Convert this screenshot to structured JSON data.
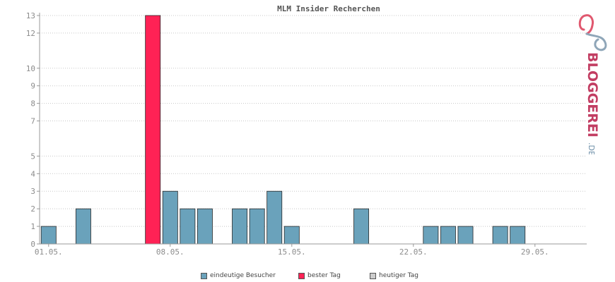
{
  "chart_data": {
    "type": "bar",
    "title": "MLM Insider Recherchen",
    "y_ticks": [
      0,
      1,
      2,
      3,
      4,
      5,
      7,
      8,
      9,
      10,
      12,
      13
    ],
    "x_ticks": [
      {
        "day": 1,
        "label": "01.05."
      },
      {
        "day": 8,
        "label": "08.05."
      },
      {
        "day": 15,
        "label": "15.05."
      },
      {
        "day": 22,
        "label": "22.05."
      },
      {
        "day": 29,
        "label": "29.05."
      }
    ],
    "days": [
      1,
      2,
      3,
      4,
      5,
      6,
      7,
      8,
      9,
      10,
      11,
      12,
      13,
      14,
      15,
      16,
      17,
      18,
      19,
      20,
      21,
      22,
      23,
      24,
      25,
      26,
      27,
      28,
      29,
      30,
      31
    ],
    "values": [
      1,
      0,
      2,
      0,
      0,
      0,
      13,
      3,
      2,
      2,
      0,
      2,
      2,
      3,
      1,
      0,
      0,
      0,
      2,
      0,
      0,
      0,
      1,
      1,
      1,
      0,
      1,
      1,
      0,
      0,
      0
    ],
    "best_day": 7,
    "grid": true,
    "legend_position": "bottom"
  },
  "legend": [
    {
      "label": "eindeutige Besucher",
      "color": "#6aa2bb"
    },
    {
      "label": "bester Tag",
      "color": "#ff2255"
    },
    {
      "label": "heutiger Tag",
      "color": "#cccccc"
    }
  ],
  "logo": {
    "text": "BLOGGEREI",
    "suffix": ".DE"
  },
  "colors": {
    "bar": "#6aa2bb",
    "best": "#ff2255",
    "grid": "#c8c8c8",
    "axis": "#999999"
  }
}
